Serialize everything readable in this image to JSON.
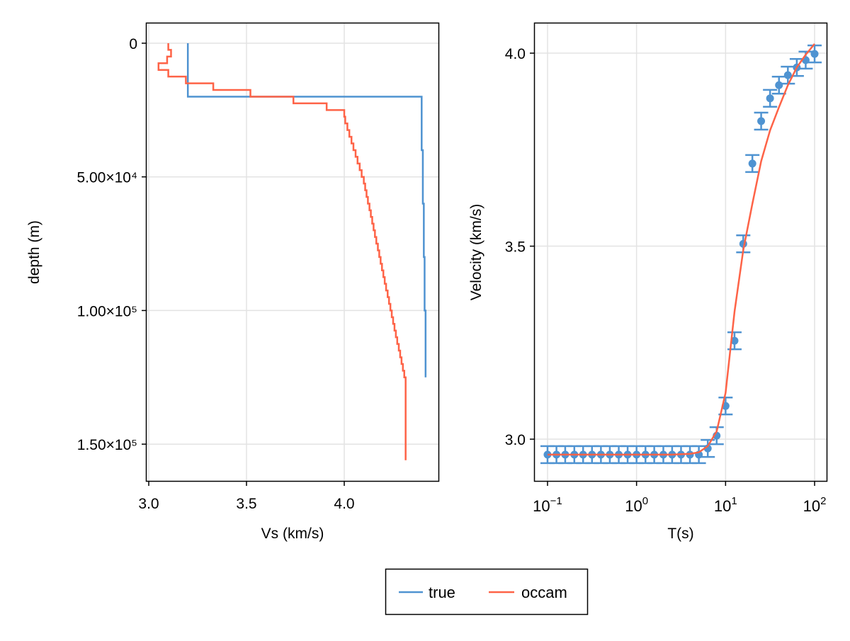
{
  "colors": {
    "true": "#4f93d1",
    "occam": "#fe6347",
    "grid": "#e3e3e3"
  },
  "legend": {
    "placement": "bottom-center",
    "entries": [
      "true",
      "occam"
    ]
  },
  "chart_data": [
    {
      "type": "line",
      "title": "",
      "xlabel": "Vs (km/s)",
      "ylabel": "depth (m)",
      "xlim": [
        2.9855,
        4.4855
      ],
      "ylim": [
        -7684,
        164017
      ],
      "y_reversed": true,
      "grid": true,
      "xticks": [
        3.0,
        3.5,
        4.0
      ],
      "xtick_labels": [
        "3.0",
        "3.5",
        "4.0"
      ],
      "yticks": [
        0,
        50000,
        100000,
        150000
      ],
      "ytick_labels": [
        "0",
        "5.00×10⁴",
        "1.00×10⁵",
        "1.50×10⁵"
      ],
      "series": [
        {
          "name": "true",
          "style": "step",
          "layer_tops": [
            0,
            20000,
            40000,
            60000,
            80000,
            100000
          ],
          "vs": [
            3.2,
            4.396,
            4.402,
            4.407,
            4.411,
            4.416
          ],
          "bottom": 125000
        },
        {
          "name": "occam",
          "style": "step",
          "layer_tops": [
            0,
            2500,
            5000,
            7500,
            10000,
            12500,
            15000,
            17500,
            20000,
            22500,
            25000,
            27500,
            30000,
            32500,
            35000,
            37500,
            40000,
            42500,
            45000,
            47500,
            50000,
            52500,
            55000,
            57500,
            60000,
            62500,
            65000,
            67500,
            70000,
            72500,
            75000,
            77500,
            80000,
            82500,
            85000,
            87500,
            90000,
            92500,
            95000,
            97500,
            100000,
            102500,
            105000,
            107500,
            110000,
            112500,
            115000,
            117500,
            120000,
            122500,
            125000
          ],
          "vs": [
            3.1,
            3.114,
            3.094,
            3.05,
            3.1,
            3.19,
            3.33,
            3.52,
            3.74,
            3.91,
            4.0,
            4.005,
            4.016,
            4.026,
            4.037,
            4.047,
            4.058,
            4.068,
            4.079,
            4.089,
            4.1,
            4.107,
            4.114,
            4.121,
            4.129,
            4.136,
            4.143,
            4.15,
            4.157,
            4.164,
            4.172,
            4.179,
            4.186,
            4.193,
            4.2,
            4.207,
            4.214,
            4.222,
            4.229,
            4.236,
            4.243,
            4.25,
            4.257,
            4.264,
            4.271,
            4.279,
            4.286,
            4.293,
            4.3,
            4.307,
            4.314
          ],
          "bottom": 156000
        }
      ]
    },
    {
      "type": "scatter",
      "title": "",
      "xlabel": "T(s)",
      "ylabel": "Velocity (km/s)",
      "xscale": "log10",
      "xlim_log10": [
        -1.151,
        2.143
      ],
      "ylim": [
        2.89,
        4.079
      ],
      "grid": true,
      "xticks_log10": [
        -1,
        0,
        1,
        2
      ],
      "xtick_labels": [
        {
          "base": "10",
          "exp": "−1"
        },
        {
          "base": "10",
          "exp": "0"
        },
        {
          "base": "10",
          "exp": "1"
        },
        {
          "base": "10",
          "exp": "2"
        }
      ],
      "yticks": [
        3.0,
        3.5,
        4.0
      ],
      "ytick_labels": [
        "3.0",
        "3.5",
        "4.0"
      ],
      "T": [
        0.1,
        0.126,
        0.158,
        0.2,
        0.251,
        0.316,
        0.398,
        0.501,
        0.631,
        0.794,
        1.0,
        1.26,
        1.58,
        2.0,
        2.51,
        3.16,
        3.98,
        5.01,
        6.31,
        7.94,
        10.0,
        12.6,
        15.8,
        20.0,
        25.1,
        31.6,
        39.8,
        50.1,
        63.1,
        79.4,
        100.0
      ],
      "series": [
        {
          "name": "true",
          "style": "points-errorbars",
          "error": 0.022,
          "values": [
            2.96,
            2.96,
            2.96,
            2.96,
            2.96,
            2.96,
            2.96,
            2.96,
            2.96,
            2.96,
            2.96,
            2.96,
            2.96,
            2.96,
            2.96,
            2.96,
            2.96,
            2.96,
            2.976,
            3.009,
            3.086,
            3.255,
            3.506,
            3.714,
            3.824,
            3.883,
            3.917,
            3.943,
            3.963,
            3.982,
            3.998
          ]
        },
        {
          "name": "occam",
          "style": "line",
          "values": [
            2.96,
            2.96,
            2.96,
            2.96,
            2.96,
            2.96,
            2.96,
            2.96,
            2.96,
            2.96,
            2.96,
            2.96,
            2.96,
            2.96,
            2.96,
            2.961,
            2.962,
            2.966,
            2.982,
            3.02,
            3.12,
            3.33,
            3.49,
            3.61,
            3.72,
            3.8,
            3.86,
            3.917,
            3.963,
            3.996,
            4.024
          ]
        }
      ]
    }
  ]
}
